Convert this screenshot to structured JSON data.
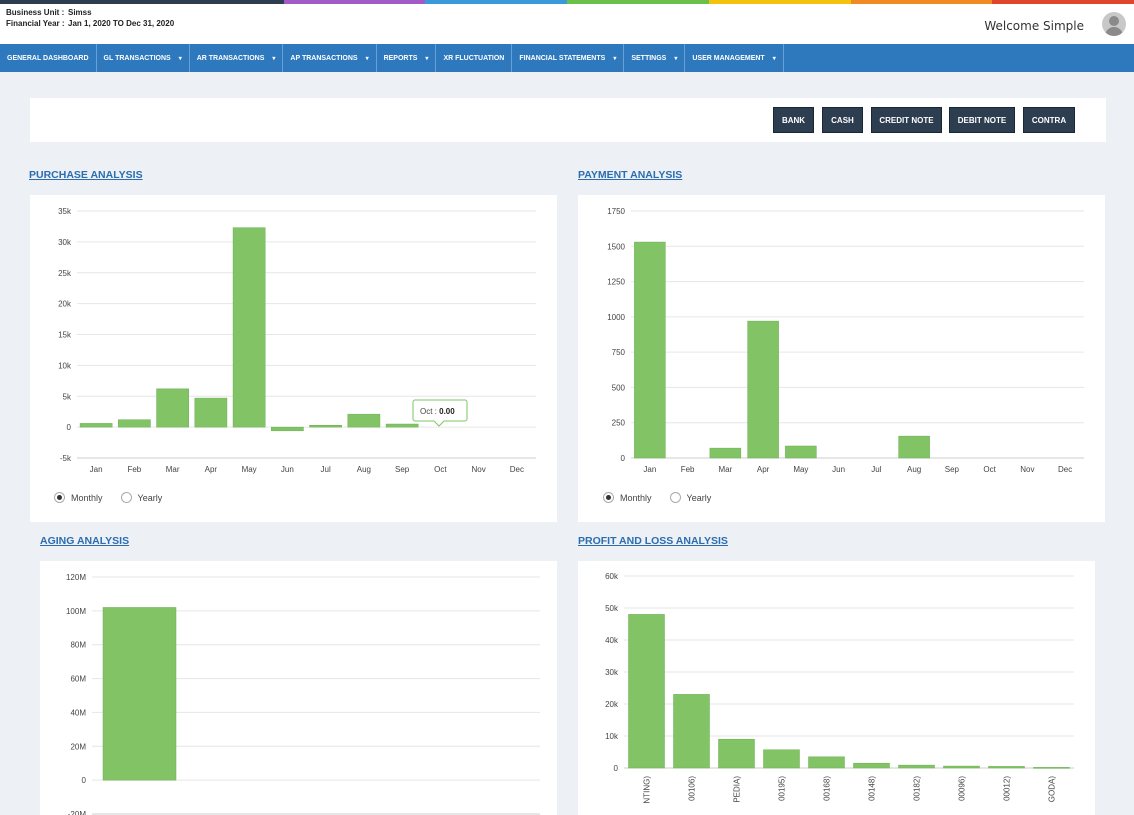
{
  "colors": {
    "stripe": [
      "#2d3e50",
      "#2d3e50",
      "#a35ac8",
      "#3a9ad9",
      "#6cc04a",
      "#f4c20d",
      "#f08a24",
      "#e0442c"
    ],
    "nav": "#2e78be",
    "bar": "#82c366"
  },
  "header": {
    "business_unit_label": "Business Unit :",
    "business_unit_value": "Simss",
    "financial_year_label": "Financial Year :",
    "financial_year_value": "Jan 1, 2020 TO Dec 31, 2020",
    "welcome": "Welcome Simple",
    "avatar_icon": "user-avatar-icon"
  },
  "nav": [
    {
      "label": "GENERAL DASHBOARD",
      "dropdown": false
    },
    {
      "label": "GL TRANSACTIONS",
      "dropdown": true
    },
    {
      "label": "AR TRANSACTIONS",
      "dropdown": true
    },
    {
      "label": "AP TRANSACTIONS",
      "dropdown": true
    },
    {
      "label": "REPORTS",
      "dropdown": true
    },
    {
      "label": "XR FLUCTUATION",
      "dropdown": false
    },
    {
      "label": "FINANCIAL STATEMENTS",
      "dropdown": true
    },
    {
      "label": "SETTINGS",
      "dropdown": true
    },
    {
      "label": "USER MANAGEMENT",
      "dropdown": true
    }
  ],
  "actions": {
    "bank": "BANK",
    "cash": "CASH",
    "credit_note": "CREDIT NOTE",
    "debit_note": "DEBIT NOTE",
    "contra": "CONTRA"
  },
  "purchase": {
    "title": "PURCHASE ANALYSIS",
    "tooltip_label": "Oct :",
    "tooltip_value": "0.00",
    "radio_monthly": "Monthly",
    "radio_yearly": "Yearly"
  },
  "payment": {
    "title": "PAYMENT ANALYSIS",
    "radio_monthly": "Monthly",
    "radio_yearly": "Yearly"
  },
  "aging": {
    "title": "AGING ANALYSIS"
  },
  "pnl": {
    "title": "PROFIT AND LOSS ANALYSIS"
  },
  "chart_data": [
    {
      "type": "bar",
      "title": "PURCHASE ANALYSIS",
      "categories": [
        "Jan",
        "Feb",
        "Mar",
        "Apr",
        "May",
        "Jun",
        "Jul",
        "Aug",
        "Sep",
        "Oct",
        "Nov",
        "Dec"
      ],
      "values": [
        600,
        1200,
        6200,
        4700,
        32300,
        -600,
        300,
        2100,
        500,
        0,
        0,
        0
      ],
      "ylim": [
        -5000,
        35000
      ],
      "yticks": [
        "-5k",
        "0",
        "5k",
        "10k",
        "15k",
        "20k",
        "25k",
        "30k",
        "35k"
      ]
    },
    {
      "type": "bar",
      "title": "PAYMENT ANALYSIS",
      "categories": [
        "Jan",
        "Feb",
        "Mar",
        "Apr",
        "May",
        "Jun",
        "Jul",
        "Aug",
        "Sep",
        "Oct",
        "Nov",
        "Dec"
      ],
      "values": [
        1530,
        0,
        70,
        970,
        85,
        0,
        0,
        155,
        0,
        0,
        0,
        0
      ],
      "ylim": [
        0,
        1750
      ],
      "yticks": [
        "0",
        "250",
        "500",
        "750",
        "1000",
        "1250",
        "1500",
        "1750"
      ]
    },
    {
      "type": "bar",
      "title": "AGING ANALYSIS",
      "categories": [
        ""
      ],
      "values": [
        102000000
      ],
      "ylim": [
        -20000000,
        120000000
      ],
      "yticks": [
        "-20M",
        "0",
        "20M",
        "40M",
        "60M",
        "80M",
        "100M",
        "120M"
      ]
    },
    {
      "type": "bar",
      "title": "PROFIT AND LOSS ANALYSIS",
      "categories": [
        "NTING)",
        "00106)",
        "PEDIA)",
        "00195)",
        "00168)",
        "00148)",
        "00182)",
        "00096)",
        "00012)",
        "GODA)"
      ],
      "values": [
        48000,
        23000,
        9000,
        5700,
        3500,
        1500,
        900,
        600,
        500,
        200
      ],
      "ylim": [
        0,
        60000
      ],
      "yticks": [
        "0",
        "10k",
        "20k",
        "30k",
        "40k",
        "50k",
        "60k"
      ]
    }
  ]
}
